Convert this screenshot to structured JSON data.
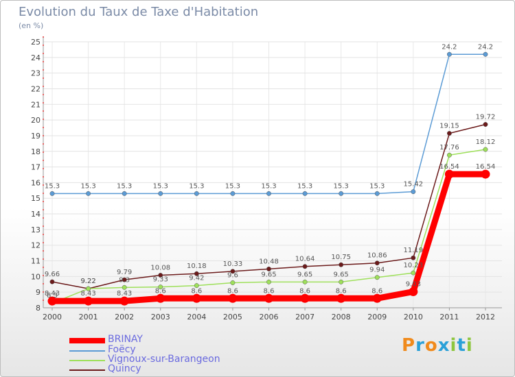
{
  "header": {
    "title": "Evolution du Taux de Taxe d'Habitation",
    "subtitle": "(en %)"
  },
  "logo": {
    "text": "Proxiti",
    "colors": [
      "#f08a1c",
      "#2aa0d8",
      "#f08a1c",
      "#2aa0d8",
      "#8dc63f",
      "#2aa0d8",
      "#8dc63f"
    ]
  },
  "chart_data": {
    "type": "line",
    "title": "Evolution du Taux de Taxe d'Habitation",
    "ylabel": "(en %)",
    "xlabel": "",
    "x": [
      "2000",
      "2001",
      "2002",
      "2003",
      "2004",
      "2005",
      "2006",
      "2007",
      "2008",
      "2009",
      "2010",
      "2011",
      "2012"
    ],
    "ylim": [
      8,
      25
    ],
    "yticks": [
      8,
      9,
      10,
      11,
      12,
      13,
      14,
      15,
      16,
      17,
      18,
      19,
      20,
      21,
      22,
      23,
      24,
      25
    ],
    "grid": "horizontal",
    "legend_position": "bottom-left",
    "series": [
      {
        "name": "BRINAY",
        "color": "#ff0000",
        "values": [
          8.43,
          8.43,
          8.43,
          8.6,
          8.6,
          8.6,
          8.6,
          8.6,
          8.6,
          8.6,
          9.03,
          16.54,
          16.54
        ],
        "labels": [
          "8.43",
          "8.43",
          "8.43",
          "8.6",
          "8.6",
          "8.6",
          "8.6",
          "8.6",
          "8.6",
          "8.6",
          "9.03",
          "16.54",
          "16.54"
        ]
      },
      {
        "name": "Foëcy",
        "color": "#5b9bd5",
        "values": [
          15.3,
          15.3,
          15.3,
          15.3,
          15.3,
          15.3,
          15.3,
          15.3,
          15.3,
          15.3,
          15.42,
          24.2,
          24.2
        ],
        "labels": [
          "15.3",
          "15.3",
          "15.3",
          "15.3",
          "15.3",
          "15.3",
          "15.3",
          "15.3",
          "15.3",
          "15.3",
          "15.42",
          "24.2",
          "24.2"
        ]
      },
      {
        "name": "Vignoux-sur-Barangeon",
        "color": "#9ee05a",
        "values": [
          8.3,
          9.22,
          9.3,
          9.33,
          9.42,
          9.6,
          9.65,
          9.65,
          9.65,
          9.94,
          10.23,
          17.76,
          18.12
        ],
        "labels": [
          "8.3",
          "9.22",
          "9.3",
          "9.33",
          "9.42",
          "9.6",
          "9.65",
          "9.65",
          "9.65",
          "9.94",
          "10.23",
          "17.76",
          "18.12"
        ]
      },
      {
        "name": "Quincy",
        "color": "#6b1a1a",
        "values": [
          9.66,
          9.22,
          9.79,
          10.08,
          10.18,
          10.33,
          10.48,
          10.64,
          10.75,
          10.86,
          11.19,
          19.15,
          19.72
        ],
        "labels": [
          "9.66",
          "9.22",
          "9.79",
          "10.08",
          "10.18",
          "10.33",
          "10.48",
          "10.64",
          "10.75",
          "10.86",
          "11.19",
          "19.15",
          "19.72"
        ]
      }
    ]
  }
}
